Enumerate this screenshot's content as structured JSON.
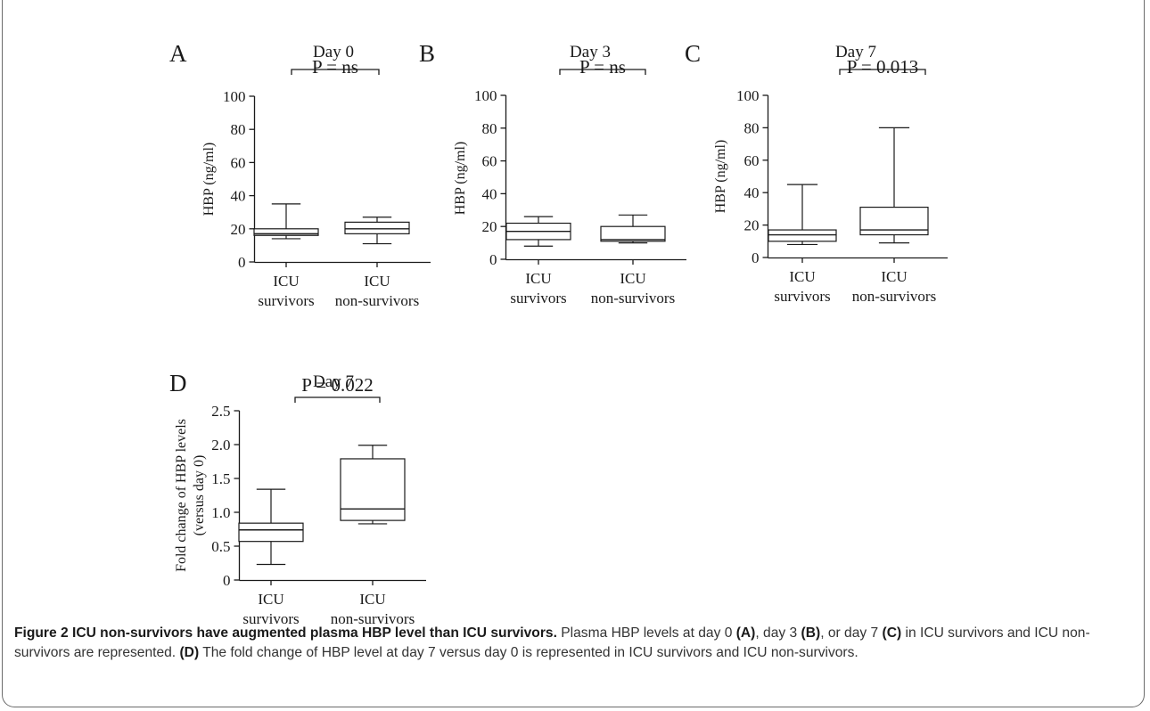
{
  "chart_data": [
    {
      "type": "box",
      "panel": "A",
      "title": "Day 0",
      "ylabel": "HBP (ng/ml)",
      "ylim": [
        0,
        100
      ],
      "yticks": [
        0,
        20,
        40,
        60,
        80,
        100
      ],
      "categories": [
        [
          "ICU",
          "survivors"
        ],
        [
          "ICU",
          "non-survivors"
        ]
      ],
      "boxes": [
        {
          "min": 14,
          "q1": 16,
          "median": 17,
          "q3": 20,
          "max": 35
        },
        {
          "min": 11,
          "q1": 17,
          "median": 20,
          "q3": 24,
          "max": 27
        }
      ],
      "annotation": "P = ns"
    },
    {
      "type": "box",
      "panel": "B",
      "title": "Day 3",
      "ylabel": "HBP (ng/ml)",
      "ylim": [
        0,
        100
      ],
      "yticks": [
        0,
        20,
        40,
        60,
        80,
        100
      ],
      "categories": [
        [
          "ICU",
          "survivors"
        ],
        [
          "ICU",
          "non-survivors"
        ]
      ],
      "boxes": [
        {
          "min": 8,
          "q1": 12,
          "median": 17,
          "q3": 22,
          "max": 26
        },
        {
          "min": 10,
          "q1": 11,
          "median": 12,
          "q3": 20,
          "max": 27
        }
      ],
      "annotation": "P = ns"
    },
    {
      "type": "box",
      "panel": "C",
      "title": "Day 7",
      "ylabel": "HBP (ng/ml)",
      "ylim": [
        0,
        100
      ],
      "yticks": [
        0,
        20,
        40,
        60,
        80,
        100
      ],
      "categories": [
        [
          "ICU",
          "survivors"
        ],
        [
          "ICU",
          "non-survivors"
        ]
      ],
      "boxes": [
        {
          "min": 8,
          "q1": 10,
          "median": 14,
          "q3": 17,
          "max": 45
        },
        {
          "min": 9,
          "q1": 14,
          "median": 17,
          "q3": 31,
          "max": 80
        }
      ],
      "annotation": "P = 0.013"
    },
    {
      "type": "box",
      "panel": "D",
      "title": "Day 7",
      "ylabel": [
        "Fold change of HBP levels",
        "(versus day 0)"
      ],
      "ylim": [
        0,
        2.5
      ],
      "yticks": [
        "0",
        "0.5",
        "1.0",
        "1.5",
        "2.0",
        "2.5"
      ],
      "categories": [
        [
          "ICU",
          "survivors"
        ],
        [
          "ICU",
          "non-survivors"
        ]
      ],
      "boxes": [
        {
          "min": 0.23,
          "q1": 0.57,
          "median": 0.74,
          "q3": 0.84,
          "max": 1.34
        },
        {
          "min": 0.83,
          "q1": 0.88,
          "median": 1.05,
          "q3": 1.79,
          "max": 1.99
        }
      ],
      "annotation": "P = 0.022"
    }
  ],
  "caption": {
    "lead": "Figure 2 ICU non-survivors have augmented plasma HBP level than ICU survivors.",
    "s1": " Plasma HBP levels at day 0 ",
    "a": "(A)",
    "s2": ", day 3 ",
    "b": "(B)",
    "s3": ", or day 7 ",
    "c": "(C)",
    "s4": " in ICU survivors and ICU non-survivors are represented. ",
    "d": "(D)",
    "s5": " The fold change of HBP level at day 7 versus day 0 is represented in ICU survivors and ICU non-survivors."
  }
}
